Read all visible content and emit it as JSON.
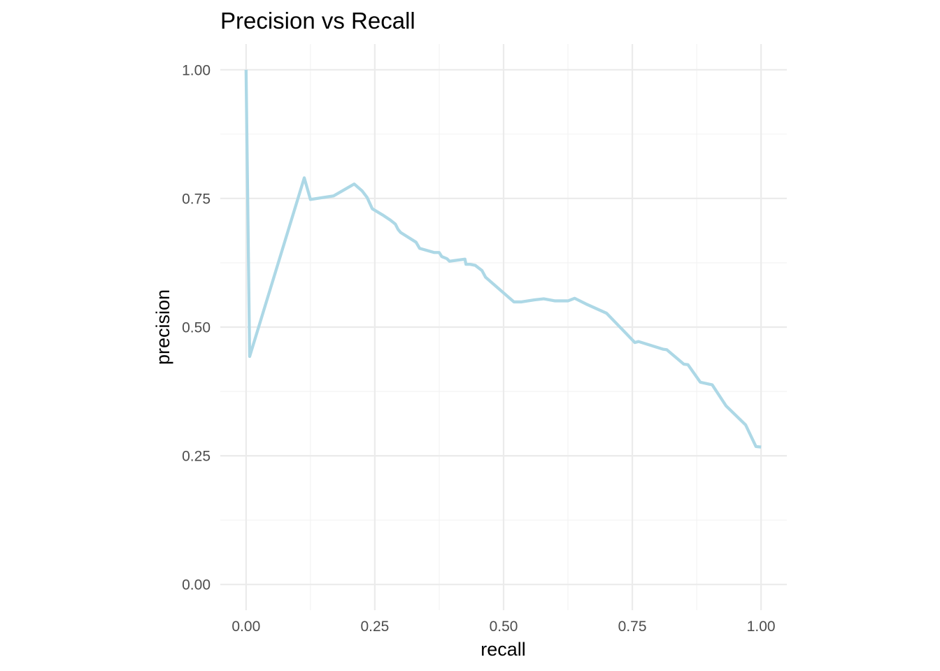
{
  "chart_data": {
    "type": "line",
    "title": "Precision vs Recall",
    "xlabel": "recall",
    "ylabel": "precision",
    "xlim": [
      -0.05,
      1.05
    ],
    "ylim": [
      -0.05,
      1.05
    ],
    "x_ticks": [
      "0.00",
      "0.25",
      "0.50",
      "0.75",
      "1.00"
    ],
    "y_ticks": [
      "0.00",
      "0.25",
      "0.50",
      "0.75",
      "1.00"
    ],
    "x_tick_values": [
      0,
      0.25,
      0.5,
      0.75,
      1.0
    ],
    "y_tick_values": [
      0,
      0.25,
      0.5,
      0.75,
      1.0
    ],
    "grid": true,
    "line_color": "#ADD8E6",
    "series": [
      {
        "points": [
          [
            0.0,
            1.0
          ],
          [
            0.007,
            0.443
          ],
          [
            0.113,
            0.79
          ],
          [
            0.125,
            0.748
          ],
          [
            0.17,
            0.755
          ],
          [
            0.21,
            0.778
          ],
          [
            0.225,
            0.765
          ],
          [
            0.235,
            0.752
          ],
          [
            0.245,
            0.73
          ],
          [
            0.265,
            0.718
          ],
          [
            0.28,
            0.708
          ],
          [
            0.29,
            0.7
          ],
          [
            0.295,
            0.69
          ],
          [
            0.3,
            0.684
          ],
          [
            0.33,
            0.665
          ],
          [
            0.337,
            0.653
          ],
          [
            0.365,
            0.645
          ],
          [
            0.375,
            0.645
          ],
          [
            0.38,
            0.637
          ],
          [
            0.39,
            0.633
          ],
          [
            0.395,
            0.628
          ],
          [
            0.425,
            0.632
          ],
          [
            0.427,
            0.622
          ],
          [
            0.435,
            0.622
          ],
          [
            0.445,
            0.62
          ],
          [
            0.458,
            0.61
          ],
          [
            0.465,
            0.597
          ],
          [
            0.52,
            0.549
          ],
          [
            0.535,
            0.549
          ],
          [
            0.56,
            0.553
          ],
          [
            0.578,
            0.555
          ],
          [
            0.6,
            0.551
          ],
          [
            0.625,
            0.551
          ],
          [
            0.638,
            0.556
          ],
          [
            0.66,
            0.545
          ],
          [
            0.7,
            0.527
          ],
          [
            0.755,
            0.47
          ],
          [
            0.762,
            0.472
          ],
          [
            0.81,
            0.457
          ],
          [
            0.817,
            0.456
          ],
          [
            0.85,
            0.428
          ],
          [
            0.858,
            0.427
          ],
          [
            0.882,
            0.393
          ],
          [
            0.9,
            0.389
          ],
          [
            0.905,
            0.388
          ],
          [
            0.932,
            0.347
          ],
          [
            0.97,
            0.31
          ],
          [
            0.99,
            0.268
          ],
          [
            1.0,
            0.267
          ]
        ]
      }
    ]
  }
}
